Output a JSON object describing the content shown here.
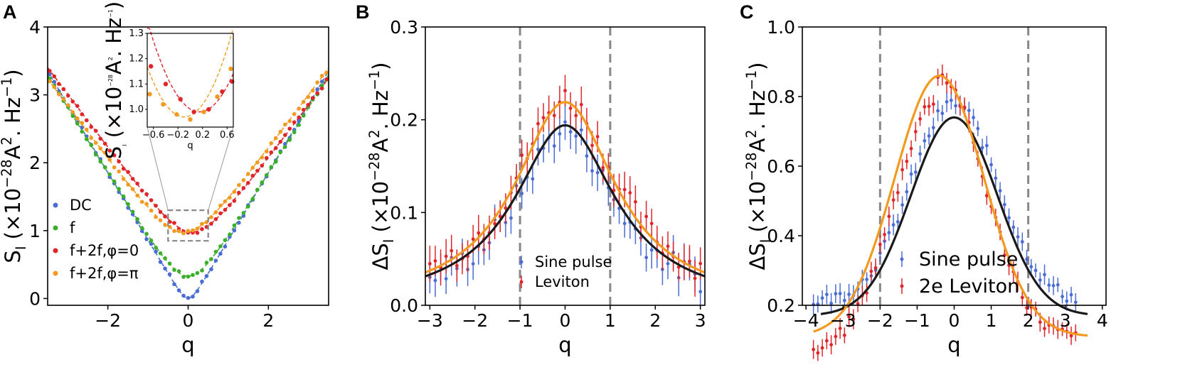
{
  "colors": {
    "blue": "#4a6cd4",
    "green": "#3bae2a",
    "red": "#e0252a",
    "orange": "#f29a1f",
    "black": "#1a1a1a",
    "gray": "#888888"
  },
  "chart_data": [
    {
      "panel": "A",
      "type": "scatter",
      "xlabel": "q",
      "ylabel": "S_I (×10^−28 A^2. Hz^−1)",
      "xlim": [
        -3.5,
        3.5
      ],
      "ylim": [
        -0.1,
        4.0
      ],
      "xticks": [
        "−2",
        "0",
        "2"
      ],
      "yticks": [
        "0",
        "1",
        "2",
        "3",
        "4"
      ],
      "legend": [
        "DC",
        "f",
        "f+2f,φ=0",
        "f+2f,φ=π"
      ],
      "series": [
        {
          "name": "DC",
          "color": "blue",
          "min": 0.0,
          "center": 0.0,
          "slope": 1.0,
          "fit": "dashed"
        },
        {
          "name": "f",
          "color": "green",
          "min": 0.33,
          "center": 0.0,
          "slope": 0.98,
          "fit": "dashed"
        },
        {
          "name": "f+2f,φ=0",
          "color": "red",
          "min": 0.98,
          "center": 0.1,
          "slope": 0.8,
          "fit": "dashed"
        },
        {
          "name": "f+2f,φ=π",
          "color": "orange",
          "min": 0.97,
          "center": -0.1,
          "slope": 0.8,
          "fit": "dashed"
        }
      ],
      "inset": {
        "xlabel": "q",
        "ylabel": "S_I (×10^−28 A^2. Hz^−1)",
        "xlim": [
          -0.7,
          0.7
        ],
        "ylim": [
          0.93,
          1.3
        ],
        "xticks": [
          "−0.6",
          "−0.2",
          "0.2",
          "0.6"
        ],
        "yticks": [
          "1.0",
          "1.1",
          "1.2",
          "1.3"
        ],
        "red_points": [
          [
            -0.64,
            1.17
          ],
          [
            -0.4,
            1.1
          ],
          [
            -0.16,
            1.04
          ],
          [
            0.06,
            0.99
          ],
          [
            0.3,
            1.0
          ],
          [
            0.52,
            1.07
          ],
          [
            0.68,
            1.11
          ]
        ],
        "orange_points": [
          [
            -0.66,
            1.06
          ],
          [
            -0.44,
            1.02
          ],
          [
            -0.22,
            0.98
          ],
          [
            0.0,
            0.96
          ],
          [
            0.22,
            0.99
          ],
          [
            0.44,
            1.05
          ],
          [
            0.66,
            1.16
          ]
        ]
      }
    },
    {
      "panel": "B",
      "type": "scatter",
      "xlabel": "q",
      "ylabel": "ΔS_I (×10^−28 A^2. Hz^−1)",
      "xlim": [
        -3.1,
        3.1
      ],
      "ylim": [
        0.0,
        0.3
      ],
      "xticks": [
        "−3",
        "−2",
        "−1",
        "0",
        "1",
        "2",
        "3"
      ],
      "yticks": [
        "0.0",
        "0.1",
        "0.2",
        "0.3"
      ],
      "vlines": [
        -1,
        1
      ],
      "legend": [
        "Sine pulse",
        "Leviton"
      ],
      "series": [
        {
          "name": "Sine pulse",
          "color": "blue",
          "fit_color": "black",
          "peak": 0.194,
          "width": 1.36,
          "center": 0.0
        },
        {
          "name": "Leviton",
          "color": "red",
          "fit_color": "orange",
          "peak": 0.219,
          "width": 1.36,
          "center": 0.0
        }
      ]
    },
    {
      "panel": "C",
      "type": "scatter",
      "xlabel": "q",
      "ylabel": "ΔS_I (×10^−28 A^2. Hz^−1)",
      "xlim": [
        -4.1,
        4.1
      ],
      "ylim": [
        0.2,
        1.0
      ],
      "xticks": [
        "−4",
        "−3",
        "−2",
        "−1",
        "0",
        "1",
        "2",
        "3",
        "4"
      ],
      "yticks": [
        "0.2",
        "0.4",
        "0.6",
        "0.8",
        "1.0"
      ],
      "vlines": [
        -2,
        2
      ],
      "legend": [
        "Sine pulse",
        "2e Leviton"
      ],
      "series": [
        {
          "name": "Sine pulse",
          "color": "blue",
          "fit_color": "black",
          "base": 0.17,
          "peak": 0.74,
          "width": 1.45,
          "center": 0.0
        },
        {
          "name": "2e Leviton",
          "color": "red",
          "fit_color": "orange",
          "base": 0.11,
          "peak": 0.86,
          "width": 1.5,
          "center": -0.4
        }
      ]
    }
  ]
}
